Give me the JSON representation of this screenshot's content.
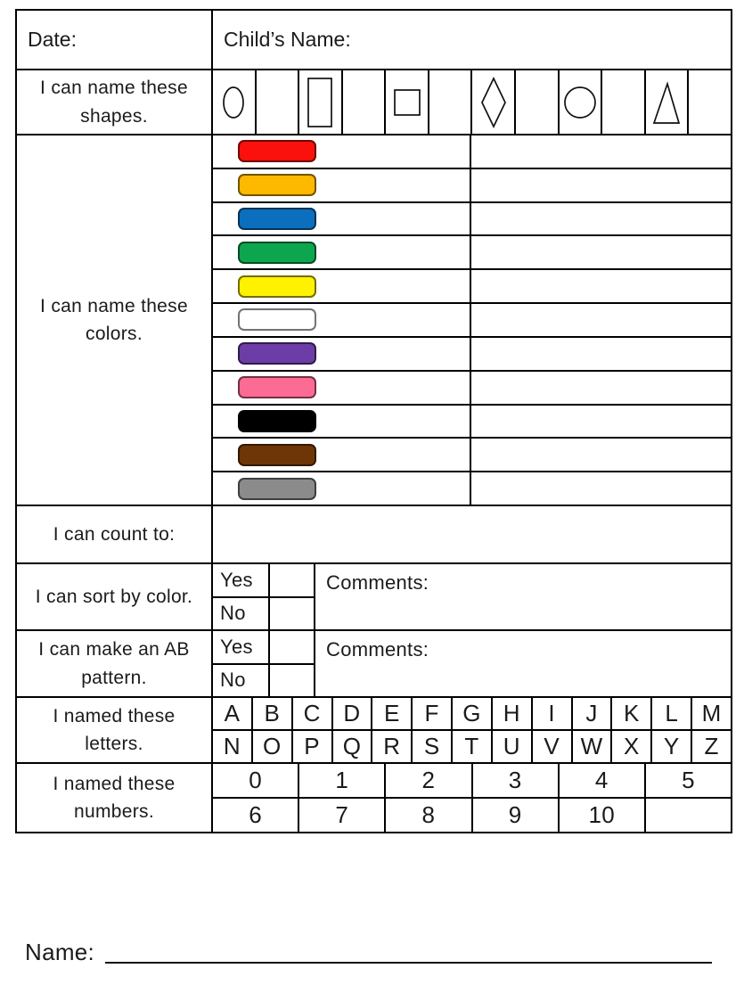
{
  "page": {
    "background": "#ffffff",
    "ink": "#1b1b1b",
    "grid_line": "#000000"
  },
  "header": {
    "date_label": "Date:",
    "child_name_label": "Child’s Name:"
  },
  "shapes_row": {
    "label": "I can name these shapes.",
    "cells": [
      "oval",
      "",
      "rectangle",
      "",
      "square",
      "",
      "diamond",
      "",
      "circle",
      "",
      "triangle",
      ""
    ]
  },
  "colors_row": {
    "label": "I can name these colors.",
    "swatches": [
      {
        "name": "red",
        "hex": "#FA100C"
      },
      {
        "name": "orange",
        "hex": "#FDB800"
      },
      {
        "name": "blue",
        "hex": "#0B6FBE"
      },
      {
        "name": "green",
        "hex": "#0DA64F"
      },
      {
        "name": "yellow",
        "hex": "#FEF200"
      },
      {
        "name": "white",
        "hex": "#FFFFFF"
      },
      {
        "name": "purple",
        "hex": "#6C3DA6"
      },
      {
        "name": "pink",
        "hex": "#FC6B93"
      },
      {
        "name": "black",
        "hex": "#000000"
      },
      {
        "name": "brown",
        "hex": "#6E3607"
      },
      {
        "name": "gray",
        "hex": "#8B8B8B"
      }
    ]
  },
  "count_row": {
    "label": "I can count to:",
    "value": ""
  },
  "sort_row": {
    "label": "I can sort by color.",
    "yes_label": "Yes",
    "no_label": "No",
    "comments_label": "Comments:"
  },
  "ab_row": {
    "label": "I can make an AB pattern.",
    "yes_label": "Yes",
    "no_label": "No",
    "comments_label": "Comments:"
  },
  "letters_row": {
    "label": "I named these letters.",
    "row1": [
      "A",
      "B",
      "C",
      "D",
      "E",
      "F",
      "G",
      "H",
      "I",
      "J",
      "K",
      "L",
      "M"
    ],
    "row2": [
      "N",
      "O",
      "P",
      "Q",
      "R",
      "S",
      "T",
      "U",
      "V",
      "W",
      "X",
      "Y",
      "Z"
    ]
  },
  "numbers_row": {
    "label": "I named these numbers.",
    "row1": [
      "0",
      "1",
      "2",
      "3",
      "4",
      "5"
    ],
    "row2": [
      "6",
      "7",
      "8",
      "9",
      "10",
      ""
    ]
  },
  "footer": {
    "name_label": "Name:"
  }
}
